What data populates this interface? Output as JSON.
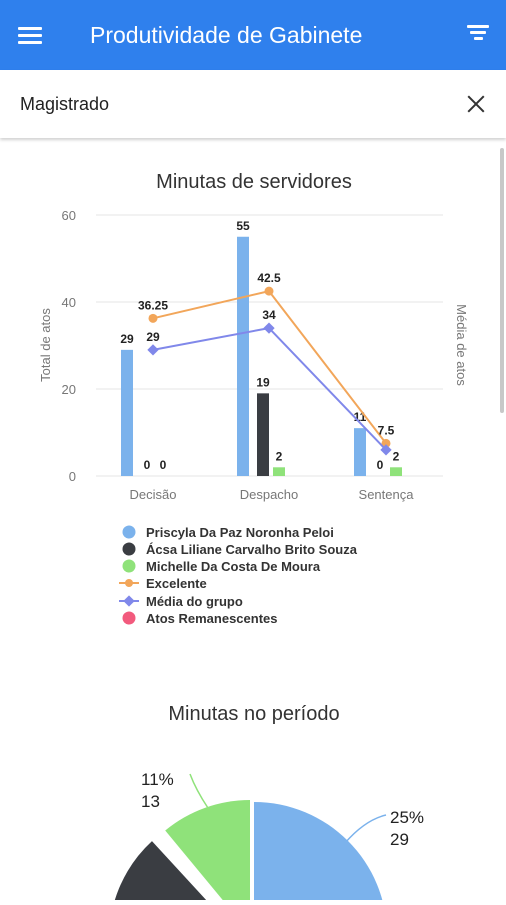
{
  "appbar": {
    "title": "Produtividade de Gabinete",
    "menu_icon": "hamburger-menu-icon",
    "filter_icon": "filter-icon"
  },
  "filter": {
    "label": "Magistrado",
    "close_icon": "close-icon"
  },
  "bar_chart": {
    "title": "Minutas de servidores",
    "ylabel_left": "Total de atos",
    "ylabel_right": "Média de atos",
    "yticks": [
      "0",
      "20",
      "40",
      "60"
    ],
    "categories": [
      "Decisão",
      "Despacho",
      "Sentença"
    ]
  },
  "pie_chart": {
    "title": "Minutas no período"
  },
  "colors": {
    "appbar": "#2f80ed",
    "blue": "#7bb2ec",
    "dark": "#3a3d42",
    "green": "#8fe27a",
    "orange": "#f2a65a",
    "purple": "#8088ea",
    "pink": "#f25a7d"
  },
  "chart_data": [
    {
      "type": "bar",
      "title": "Minutas de servidores",
      "categories": [
        "Decisão",
        "Despacho",
        "Sentença"
      ],
      "ylabel": "Total de atos",
      "y2label": "Média de atos",
      "ylim": [
        0,
        60
      ],
      "series": [
        {
          "name": "Priscyla Da Paz Noronha Peloi",
          "type": "bar",
          "color": "#7bb2ec",
          "values": [
            29,
            55,
            11
          ],
          "labels": [
            "29",
            "55",
            "11"
          ]
        },
        {
          "name": "Ácsa Liliane Carvalho Brito Souza",
          "type": "bar",
          "color": "#3a3d42",
          "values": [
            0,
            19,
            0
          ],
          "labels": [
            "0",
            "19",
            "0"
          ]
        },
        {
          "name": "Michelle Da Costa De Moura",
          "type": "bar",
          "color": "#8fe27a",
          "values": [
            0,
            2,
            2
          ],
          "labels": [
            "0",
            "2",
            "2"
          ]
        },
        {
          "name": "Excelente",
          "type": "line",
          "color": "#f2a65a",
          "values": [
            36.25,
            42.5,
            7.5
          ],
          "labels": [
            "36.25",
            "42.5",
            "7.5"
          ]
        },
        {
          "name": "Média do grupo",
          "type": "line",
          "color": "#8088ea",
          "values": [
            29,
            34,
            6
          ],
          "labels": [
            "29",
            "34",
            ""
          ]
        },
        {
          "name": "Atos Remanescentes",
          "type": "bar",
          "color": "#f25a7d",
          "values": [
            0,
            0,
            0
          ],
          "labels": [
            "0",
            "0",
            "0"
          ]
        }
      ],
      "legend": "bottom"
    },
    {
      "type": "pie",
      "title": "Minutas no período",
      "slices": [
        {
          "percent_label": "25%",
          "value_label": "29",
          "value": 29,
          "color": "#7bb2ec"
        },
        {
          "percent_label": "11%",
          "value_label": "13",
          "value": 13,
          "color": "#8fe27a"
        }
      ]
    }
  ]
}
